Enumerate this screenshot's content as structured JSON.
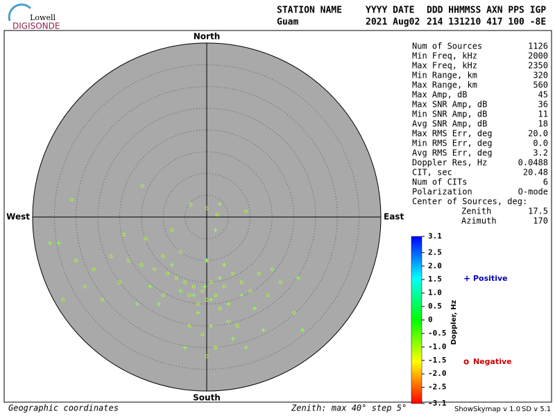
{
  "logo": {
    "top": "Lowell",
    "bottom": "DIGISONDE"
  },
  "header": {
    "columns": [
      "STATION NAME",
      "YYYY DATE",
      "DDD HHMMSS AXN PPS IGP"
    ],
    "values": [
      "Guam",
      "2021 Aug02",
      "214 131210 417 100 -8E"
    ]
  },
  "stats": {
    "rows": [
      [
        "Num of Sources",
        "1126"
      ],
      [
        "Min Freq, kHz",
        "2000"
      ],
      [
        "Max Freq, kHz",
        "2350"
      ],
      [
        "Min Range, km",
        "320"
      ],
      [
        "Max Range, km",
        "560"
      ],
      [
        "Max Amp, dB",
        "45"
      ],
      [
        "Max SNR Amp, dB",
        "36"
      ],
      [
        "Min SNR Amp, dB",
        "11"
      ],
      [
        "Avg SNR Amp, dB",
        "18"
      ],
      [
        "Max RMS Err, deg",
        "20.0"
      ],
      [
        "Min RMS Err, deg",
        "0.0"
      ],
      [
        "Avg RMS Err, deg",
        "3.2"
      ],
      [
        "Doppler Res, Hz",
        "0.0488"
      ],
      [
        "CIT, sec",
        "20.48"
      ],
      [
        "Num of CITs",
        "6"
      ],
      [
        "Polarization",
        "O-mode"
      ]
    ],
    "center_title": "Center of Sources, deg:",
    "center_rows": [
      [
        "Zenith",
        "17.5"
      ],
      [
        "Azimuth",
        "170"
      ]
    ]
  },
  "footer": {
    "left": "Geographic coordinates",
    "zenith": "Zenith: max 40°  step 5°",
    "software": "ShowSkymap v 1.0",
    "version": "SD v 5.1"
  },
  "chart_data": {
    "type": "skymap",
    "directions": {
      "north": "North",
      "south": "South",
      "east": "East",
      "west": "West"
    },
    "xlim": [
      -40,
      40
    ],
    "ylim": [
      -40,
      40
    ],
    "rticks": [
      5,
      10,
      15,
      20,
      25,
      30,
      35,
      40
    ],
    "series": [
      {
        "name": "Positive",
        "marker": "+",
        "color": "#8cff50",
        "label_color": "#0000c0",
        "x": [
          -0.5,
          1,
          -3,
          3,
          -6,
          5,
          8,
          11,
          6,
          13,
          9,
          -2,
          -8,
          -13,
          -36,
          -34,
          0,
          2,
          3,
          21,
          15,
          -11,
          -16,
          4,
          22,
          -5,
          1
        ],
        "y": [
          -16,
          -19,
          -18,
          -14,
          -17,
          -20,
          -18,
          -21,
          -28,
          -26,
          -30,
          -22,
          -11,
          -16,
          -6,
          -6,
          -10,
          -3,
          3,
          -14,
          -12,
          -20,
          -20,
          -11,
          -26,
          -30,
          -25
        ]
      },
      {
        "name": "Negative",
        "marker": "o",
        "color": "#a8f040",
        "label_color": "#d00000",
        "x": [
          -1,
          -3,
          2,
          -5,
          0,
          -2,
          4,
          -7,
          1,
          -4,
          3,
          -9,
          -12,
          -15,
          -18,
          -22,
          -26,
          -30,
          -33,
          -20,
          -10,
          6,
          8,
          10,
          12,
          14,
          5,
          -1,
          2,
          -4,
          0,
          7,
          -14,
          -19,
          -8,
          -3.7,
          2.4,
          9,
          -14.8,
          -31,
          0,
          -6,
          -10,
          17,
          20,
          -24,
          -28
        ],
        "y": [
          -17,
          -16,
          -18,
          -15,
          -19,
          -20,
          -16,
          -14,
          -15,
          -18,
          -21,
          -13,
          -12,
          -11,
          -10,
          -9,
          -12,
          -10,
          -19,
          -15,
          -18,
          -13,
          -15,
          -17,
          -13,
          -18,
          -24,
          -27,
          -30,
          -25,
          -32,
          -25,
          -5,
          -4,
          -3,
          2.9,
          0.5,
          1.3,
          7.2,
          4,
          2,
          -8,
          -9,
          -15,
          -22,
          -19,
          -16
        ]
      }
    ],
    "colorbar": {
      "label": "Doppler, Hz",
      "lim": [
        -3.1,
        3.1
      ],
      "ticks": [
        3.1,
        2.5,
        {
          "value": 2,
          "label": "2.0"
        },
        1.5,
        {
          "value": 1,
          "label": "1.0"
        },
        0.5,
        0,
        -0.5,
        {
          "value": -1,
          "label": "-1.0"
        },
        -1.5,
        {
          "value": -2,
          "label": "-2.0"
        },
        -2.5,
        -3.1
      ],
      "colors": [
        "#ff0000",
        "#ffff00",
        "#00ff00",
        "#00ffff",
        "#0000ff"
      ]
    }
  }
}
